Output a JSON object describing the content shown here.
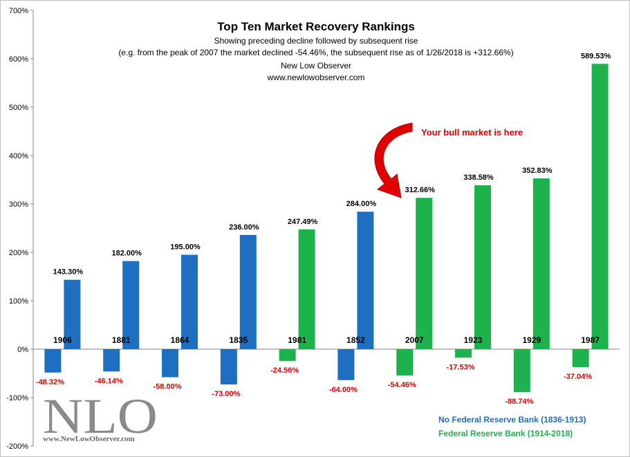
{
  "chart_data": {
    "type": "bar",
    "title": "Top Ten Market Recovery Rankings",
    "subtitle_lines": [
      "Showing preceding decline followed by subsequent rise",
      "(e.g. from the peak of 2007  the market declined -54.46%, the subsequent rise as of 1/26/2018  is +312.66%)",
      "New Low Observer",
      "www.newlowobserver.com"
    ],
    "ylim": [
      -200,
      700
    ],
    "yticks": [
      -200,
      -100,
      0,
      100,
      200,
      300,
      400,
      500,
      600,
      700
    ],
    "ytick_labels": [
      "-200%",
      "-100%",
      "0%",
      "100%",
      "200%",
      "300%",
      "400%",
      "500%",
      "600%",
      "700%"
    ],
    "categories": [
      "1906",
      "1881",
      "1864",
      "1835",
      "1981",
      "1852",
      "2007",
      "1923",
      "1929",
      "1987"
    ],
    "series": [
      {
        "name": "Decline",
        "values": [
          -48.32,
          -46.14,
          -58.0,
          -73.0,
          -24.56,
          -64.0,
          -54.46,
          -17.53,
          -88.74,
          -37.04
        ]
      },
      {
        "name": "Subsequent rise",
        "values": [
          143.3,
          182.0,
          195.0,
          236.0,
          247.49,
          284.0,
          312.66,
          338.58,
          352.83,
          589.53
        ]
      }
    ],
    "decline_labels": [
      "-48.32%",
      "-46.14%",
      "-58.00%",
      "-73.00%",
      "-24.56%",
      "-64.00%",
      "-54.46%",
      "-17.53%",
      "-88.74%",
      "-37.04%"
    ],
    "rise_labels": [
      "143.30%",
      "182.00%",
      "195.00%",
      "236.00%",
      "247.49%",
      "284.00%",
      "312.66%",
      "338.58%",
      "352.83%",
      "589.53%"
    ],
    "groups": [
      "no_fed",
      "no_fed",
      "no_fed",
      "no_fed",
      "fed",
      "no_fed",
      "fed",
      "fed",
      "fed",
      "fed"
    ],
    "legend": [
      {
        "key": "no_fed",
        "label": "No Federal Reserve Bank (1836-1913)",
        "color": "#1f6fc1"
      },
      {
        "key": "fed",
        "label": "Federal Reserve Bank (1914-2018)",
        "color": "#1db24b"
      }
    ],
    "annotation": {
      "text": "Your bull market is here",
      "color": "#e00000",
      "target_category": "2007"
    },
    "watermark": {
      "logo": "NLO",
      "url": "www.NewLowObserver.com"
    },
    "grid": false
  }
}
